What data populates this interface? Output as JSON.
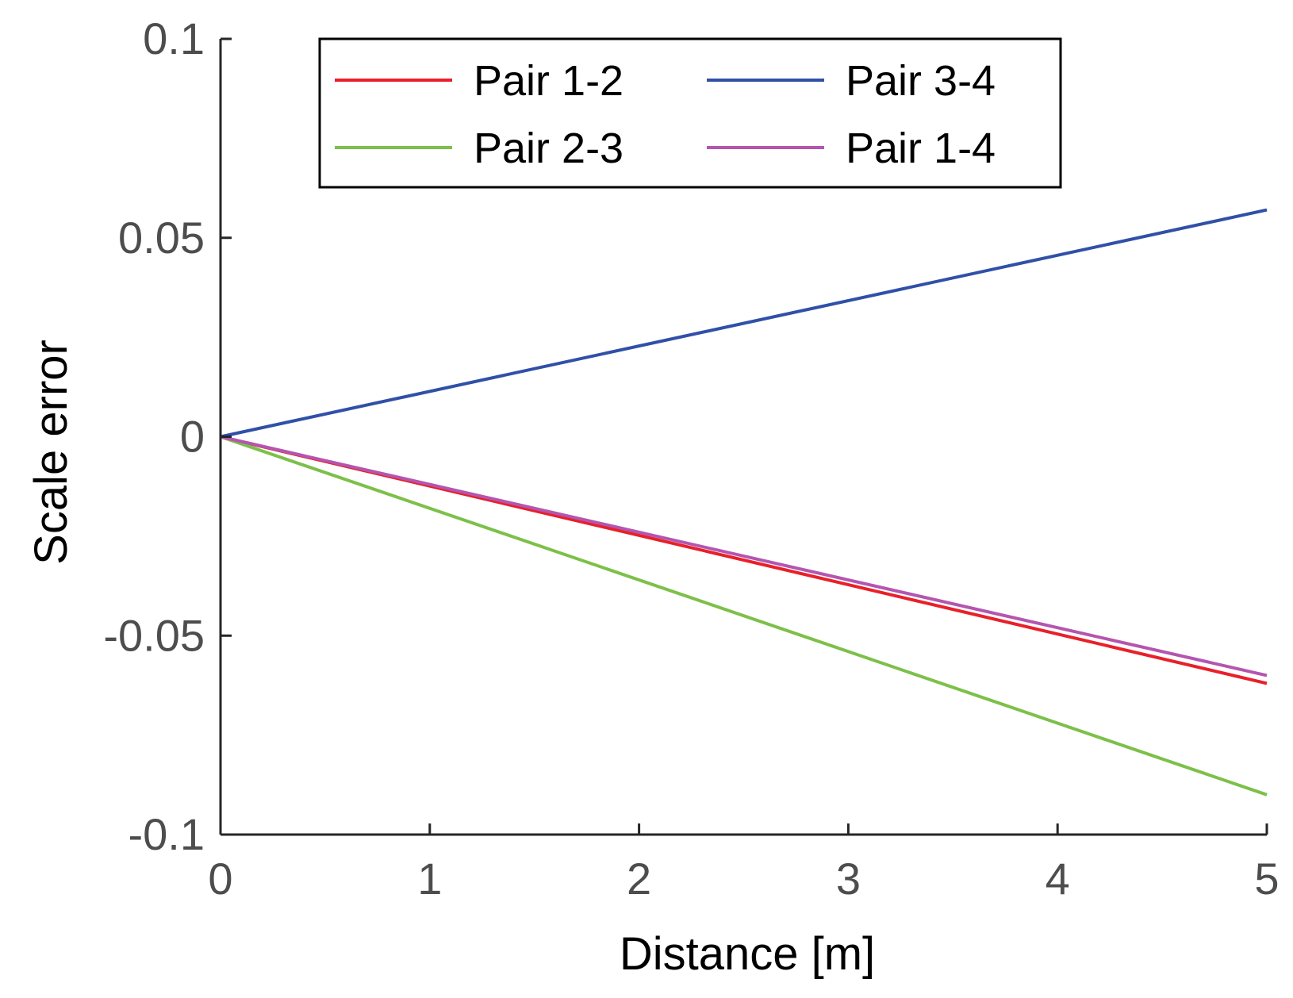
{
  "chart_data": {
    "type": "line",
    "title": "",
    "xlabel": "Distance [m]",
    "ylabel": "Scale error",
    "xlim": [
      0,
      5
    ],
    "ylim": [
      -0.1,
      0.1
    ],
    "xticks": [
      0,
      1,
      2,
      3,
      4,
      5
    ],
    "xtick_labels": [
      "0",
      "1",
      "2",
      "3",
      "4",
      "5"
    ],
    "yticks": [
      -0.1,
      -0.05,
      0,
      0.05,
      0.1
    ],
    "ytick_labels": [
      "-0.1",
      "-0.05",
      "0",
      "0.05",
      "0.1"
    ],
    "grid": false,
    "legend_position": "top",
    "series": [
      {
        "name": "Pair 1-2",
        "color": "#e8202a",
        "x": [
          0,
          5
        ],
        "y": [
          0,
          -0.062
        ]
      },
      {
        "name": "Pair 3-4",
        "color": "#3050a8",
        "x": [
          0,
          5
        ],
        "y": [
          0,
          0.057
        ]
      },
      {
        "name": "Pair 2-3",
        "color": "#7cc04a",
        "x": [
          0,
          5
        ],
        "y": [
          0,
          -0.09
        ]
      },
      {
        "name": "Pair 1-4",
        "color": "#b455b0",
        "x": [
          0,
          5
        ],
        "y": [
          0,
          -0.06
        ]
      }
    ]
  }
}
